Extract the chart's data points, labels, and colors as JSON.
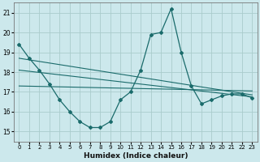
{
  "xlabel": "Humidex (Indice chaleur)",
  "background_color": "#cce8ec",
  "grid_color": "#aacccc",
  "line_color": "#1a6b6b",
  "xlim": [
    -0.5,
    23.5
  ],
  "ylim": [
    14.5,
    21.5
  ],
  "xticks": [
    0,
    1,
    2,
    3,
    4,
    5,
    6,
    7,
    8,
    9,
    10,
    11,
    12,
    13,
    14,
    15,
    16,
    17,
    18,
    19,
    20,
    21,
    22,
    23
  ],
  "yticks": [
    15,
    16,
    17,
    18,
    19,
    20,
    21
  ],
  "series1_x": [
    0,
    1,
    2,
    3,
    4,
    5,
    6,
    7,
    8,
    9,
    10,
    11,
    12,
    13,
    14,
    15,
    16,
    17,
    18,
    19,
    20,
    21,
    22,
    23
  ],
  "series1_y": [
    19.4,
    18.7,
    18.1,
    17.4,
    16.6,
    16.0,
    15.5,
    15.2,
    15.2,
    15.5,
    16.6,
    17.0,
    18.1,
    19.9,
    20.0,
    21.2,
    19.0,
    17.3,
    16.4,
    16.6,
    16.8,
    16.9,
    16.9,
    16.7
  ],
  "trend1_x": [
    0,
    23
  ],
  "trend1_y": [
    18.7,
    16.85
  ],
  "trend2_x": [
    0,
    23
  ],
  "trend2_y": [
    18.1,
    16.75
  ],
  "trend3_x": [
    0,
    23
  ],
  "trend3_y": [
    17.3,
    17.05
  ]
}
